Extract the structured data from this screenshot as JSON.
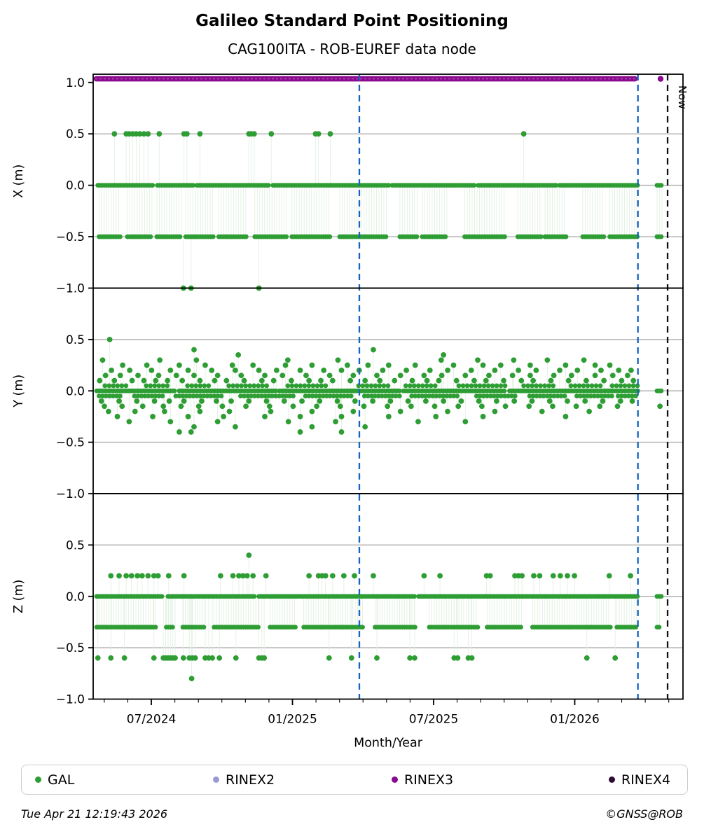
{
  "title": "Galileo Standard Point Positioning",
  "subtitle": "CAG100ITA - ROB-EUREF data node",
  "footer": {
    "timestamp": "Tue Apr 21 12:19:43 2026",
    "credit": "©GNSS@ROB"
  },
  "chart_data": {
    "type": "scatter",
    "title": "Galileo Standard Point Positioning",
    "subtitle": "CAG100ITA - ROB-EUREF data node",
    "xlabel": "Month/Year",
    "grid": "horizontal-only",
    "legend_position": "bottom-box",
    "colors": {
      "gal": "#2e9e34",
      "stem": "#e2f0e2",
      "rinex2": "#9a99d5",
      "rinex3": "#8a0a8f",
      "rinex4": "#2f0c33",
      "epoch_line": "#1565c0",
      "now_line": "#111111",
      "grid_line": "#b0b0b0",
      "spine": "#000000"
    },
    "x_axis": {
      "major_ticks": [
        {
          "f": 0.0986,
          "label": "07/2024"
        },
        {
          "f": 0.3379,
          "label": "01/2025"
        },
        {
          "f": 0.5772,
          "label": "07/2025"
        },
        {
          "f": 0.8165,
          "label": "01/2026"
        }
      ],
      "minor_ticks_f": [
        0.0188,
        0.0587,
        0.1385,
        0.1784,
        0.2182,
        0.2581,
        0.298,
        0.3778,
        0.4177,
        0.4575,
        0.4974,
        0.5373,
        0.617,
        0.6569,
        0.6968,
        0.7366,
        0.7765,
        0.8562,
        0.8961,
        0.936,
        0.9759
      ]
    },
    "now": {
      "f": 0.9739,
      "label": "Now"
    },
    "epoch_lines_f": [
      0.4513,
      0.9236
    ],
    "panels": [
      {
        "name": "X",
        "ylabel": "X (m)",
        "ylim": [
          -1.0,
          1.08
        ],
        "yticks": [
          {
            "v": 1.0,
            "label": "1.0"
          },
          {
            "v": 0.5,
            "label": "0.5"
          },
          {
            "v": 0.0,
            "label": "0.0"
          },
          {
            "v": -0.5,
            "label": "−0.5"
          },
          {
            "v": -1.0,
            "label": "−1.0"
          }
        ],
        "gridlines": [
          0.5,
          0.0,
          -0.5
        ],
        "rinex3_band": {
          "y": 1.035,
          "f0": 0.0,
          "f1": 0.9236,
          "extra_dot_f": 0.962
        },
        "dense_rows": [
          {
            "y": 0.0,
            "step": 3,
            "segments": [
              [
                0.008,
                0.103
              ],
              [
                0.109,
                0.17
              ],
              [
                0.176,
                0.3
              ],
              [
                0.305,
                0.502
              ],
              [
                0.507,
                0.648
              ],
              [
                0.653,
                0.786
              ],
              [
                0.791,
                0.9236
              ],
              [
                0.956,
                0.9665
              ]
            ]
          },
          {
            "y": -0.5,
            "step": 3,
            "stem_to": 0.0,
            "segments": [
              [
                0.01,
                0.046
              ],
              [
                0.058,
                0.1
              ],
              [
                0.108,
                0.15
              ],
              [
                0.157,
                0.206
              ],
              [
                0.213,
                0.262
              ],
              [
                0.274,
                0.33
              ],
              [
                0.337,
                0.402
              ],
              [
                0.418,
                0.498
              ],
              [
                0.52,
                0.552
              ],
              [
                0.558,
                0.6
              ],
              [
                0.63,
                0.7
              ],
              [
                0.72,
                0.76
              ],
              [
                0.766,
                0.802
              ],
              [
                0.83,
                0.866
              ],
              [
                0.876,
                0.9236
              ],
              [
                0.956,
                0.9665
              ]
            ]
          }
        ],
        "sparse_points": [
          {
            "y": 0.5,
            "stem_to": 0.0,
            "f": [
              0.036,
              0.056,
              0.061,
              0.067,
              0.073,
              0.079,
              0.086,
              0.093,
              0.112,
              0.154,
              0.159,
              0.181,
              0.264,
              0.268,
              0.273,
              0.302,
              0.377,
              0.382,
              0.402,
              0.73
            ]
          },
          {
            "y": -1.0,
            "stem_to": -0.5,
            "f": [
              0.153,
              0.166,
              0.281
            ]
          }
        ]
      },
      {
        "name": "Y",
        "ylabel": "Y (m)",
        "ylim": [
          -1.0,
          1.0
        ],
        "yticks": [
          {
            "v": 0.5,
            "label": "0.5"
          },
          {
            "v": 0.0,
            "label": "0.0"
          },
          {
            "v": -0.5,
            "label": "−0.5"
          },
          {
            "v": -1.0,
            "label": "−1.0"
          }
        ],
        "gridlines": [
          0.5,
          0.0,
          -0.5
        ],
        "dense_rows": [
          {
            "y": 0.0,
            "step": 3,
            "segments": [
              [
                0.006,
                0.14
              ],
              [
                0.146,
                0.31
              ],
              [
                0.316,
                0.52
              ],
              [
                0.526,
                0.7
              ],
              [
                0.706,
                0.9236
              ],
              [
                0.956,
                0.9665
              ]
            ]
          },
          {
            "y": -0.05,
            "step": 5,
            "segments": [
              [
                0.01,
                0.05
              ],
              [
                0.07,
                0.12
              ],
              [
                0.14,
                0.22
              ],
              [
                0.25,
                0.34
              ],
              [
                0.36,
                0.44
              ],
              [
                0.46,
                0.52
              ],
              [
                0.54,
                0.62
              ],
              [
                0.65,
                0.72
              ],
              [
                0.74,
                0.8
              ],
              [
                0.82,
                0.88
              ],
              [
                0.89,
                0.9236
              ]
            ]
          },
          {
            "y": 0.05,
            "step": 6,
            "segments": [
              [
                0.02,
                0.06
              ],
              [
                0.09,
                0.13
              ],
              [
                0.16,
                0.2
              ],
              [
                0.23,
                0.3
              ],
              [
                0.33,
                0.4
              ],
              [
                0.45,
                0.5
              ],
              [
                0.53,
                0.58
              ],
              [
                0.62,
                0.7
              ],
              [
                0.73,
                0.78
              ],
              [
                0.81,
                0.86
              ],
              [
                0.88,
                0.9236
              ]
            ]
          }
        ],
        "sparse_points": [
          {
            "y": 0.5,
            "stem_to": 0.0,
            "f": [
              0.028
            ]
          },
          {
            "y": 0.4,
            "stem_to": 0.0,
            "f": [
              0.171,
              0.475
            ]
          },
          {
            "y": 0.35,
            "stem_to": 0.0,
            "f": [
              0.246,
              0.594
            ]
          },
          {
            "y": 0.3,
            "stem_to": 0.0,
            "f": [
              0.016,
              0.113,
              0.175,
              0.33,
              0.415,
              0.59,
              0.652,
              0.713,
              0.77,
              0.832
            ]
          },
          {
            "y": 0.25,
            "stem_to": 0.0,
            "f": [
              0.05,
              0.091,
              0.146,
              0.19,
              0.236,
              0.271,
              0.326,
              0.371,
              0.431,
              0.466,
              0.501,
              0.546,
              0.611,
              0.661,
              0.691,
              0.741,
              0.801,
              0.851,
              0.876
            ]
          },
          {
            "y": 0.2,
            "stem_to": 0.0,
            "f": [
              0.031,
              0.062,
              0.099,
              0.131,
              0.161,
              0.201,
              0.241,
              0.281,
              0.311,
              0.351,
              0.391,
              0.421,
              0.451,
              0.491,
              0.531,
              0.571,
              0.601,
              0.641,
              0.681,
              0.721,
              0.751,
              0.791,
              0.821,
              0.861,
              0.891,
              0.912
            ]
          },
          {
            "y": 0.15,
            "stem_to": 0.0,
            "f": [
              0.021,
              0.046,
              0.076,
              0.111,
              0.141,
              0.171,
              0.211,
              0.251,
              0.291,
              0.321,
              0.361,
              0.401,
              0.441,
              0.481,
              0.521,
              0.561,
              0.591,
              0.631,
              0.671,
              0.711,
              0.741,
              0.781,
              0.811,
              0.851,
              0.881,
              0.906
            ]
          },
          {
            "y": 0.1,
            "stem_to": 0.0,
            "f": [
              0.011,
              0.036,
              0.066,
              0.086,
              0.106,
              0.126,
              0.151,
              0.181,
              0.206,
              0.226,
              0.256,
              0.286,
              0.306,
              0.336,
              0.366,
              0.386,
              0.406,
              0.436,
              0.461,
              0.486,
              0.511,
              0.541,
              0.566,
              0.586,
              0.616,
              0.646,
              0.666,
              0.696,
              0.726,
              0.746,
              0.776,
              0.806,
              0.836,
              0.866,
              0.896,
              0.916
            ]
          },
          {
            "y": -0.1,
            "stem_to": 0.0,
            "f": [
              0.014,
              0.044,
              0.074,
              0.104,
              0.129,
              0.154,
              0.184,
              0.209,
              0.234,
              0.264,
              0.294,
              0.324,
              0.354,
              0.384,
              0.414,
              0.444,
              0.474,
              0.504,
              0.534,
              0.564,
              0.594,
              0.624,
              0.654,
              0.684,
              0.714,
              0.744,
              0.774,
              0.804,
              0.834,
              0.864,
              0.894,
              0.914
            ]
          },
          {
            "y": -0.15,
            "stem_to": 0.0,
            "f": [
              0.019,
              0.049,
              0.084,
              0.119,
              0.149,
              0.179,
              0.219,
              0.259,
              0.299,
              0.339,
              0.379,
              0.419,
              0.459,
              0.499,
              0.539,
              0.579,
              0.619,
              0.659,
              0.699,
              0.739,
              0.779,
              0.819,
              0.859,
              0.889,
              0.961
            ]
          },
          {
            "y": -0.2,
            "stem_to": 0.0,
            "f": [
              0.026,
              0.071,
              0.121,
              0.181,
              0.231,
              0.301,
              0.371,
              0.441,
              0.521,
              0.601,
              0.681,
              0.761,
              0.841
            ]
          },
          {
            "y": -0.25,
            "stem_to": 0.0,
            "f": [
              0.041,
              0.101,
              0.161,
              0.221,
              0.291,
              0.351,
              0.421,
              0.501,
              0.581,
              0.661,
              0.801
            ]
          },
          {
            "y": -0.3,
            "stem_to": 0.0,
            "f": [
              0.061,
              0.131,
              0.211,
              0.331,
              0.411,
              0.551,
              0.631
            ]
          },
          {
            "y": -0.35,
            "stem_to": 0.0,
            "f": [
              0.171,
              0.241,
              0.371,
              0.461
            ]
          },
          {
            "y": -0.4,
            "stem_to": 0.0,
            "f": [
              0.146,
              0.166,
              0.351,
              0.421
            ]
          }
        ]
      },
      {
        "name": "Z",
        "ylabel": "Z (m)",
        "ylim": [
          -1.0,
          1.0
        ],
        "yticks": [
          {
            "v": 0.5,
            "label": "0.5"
          },
          {
            "v": 0.0,
            "label": "0.0"
          },
          {
            "v": -0.5,
            "label": "−0.5"
          },
          {
            "v": -1.0,
            "label": "−1.0"
          }
        ],
        "gridlines": [
          0.5,
          0.0,
          -0.5
        ],
        "dense_rows": [
          {
            "y": 0.0,
            "step": 3,
            "segments": [
              [
                0.006,
                0.118
              ],
              [
                0.127,
                0.274
              ],
              [
                0.281,
                0.546
              ],
              [
                0.552,
                0.9236
              ],
              [
                0.956,
                0.9665
              ]
            ]
          },
          {
            "y": -0.3,
            "step": 3,
            "stem_to": 0.0,
            "segments": [
              [
                0.006,
                0.108
              ],
              [
                0.124,
                0.135
              ],
              [
                0.152,
                0.19
              ],
              [
                0.205,
                0.283
              ],
              [
                0.3,
                0.345
              ],
              [
                0.357,
                0.458
              ],
              [
                0.478,
                0.548
              ],
              [
                0.57,
                0.652
              ],
              [
                0.668,
                0.728
              ],
              [
                0.745,
                0.878
              ],
              [
                0.888,
                0.9236
              ],
              [
                0.956,
                0.9625
              ]
            ]
          }
        ],
        "sparse_points": [
          {
            "y": 0.4,
            "stem_to": 0.0,
            "f": [
              0.264
            ]
          },
          {
            "y": 0.2,
            "stem_to": 0.0,
            "f": [
              0.03,
              0.044,
              0.056,
              0.065,
              0.075,
              0.083,
              0.093,
              0.103,
              0.11,
              0.128,
              0.154,
              0.216,
              0.237,
              0.247,
              0.254,
              0.261,
              0.271,
              0.293,
              0.366,
              0.382,
              0.388,
              0.394,
              0.406,
              0.425,
              0.443,
              0.475,
              0.561,
              0.588,
              0.667,
              0.673,
              0.715,
              0.721,
              0.727,
              0.747,
              0.757,
              0.78,
              0.792,
              0.804,
              0.816,
              0.875,
              0.911
            ]
          },
          {
            "y": -0.6,
            "stem_to": 0.0,
            "f": [
              0.008,
              0.03,
              0.053,
              0.103,
              0.119,
              0.123,
              0.127,
              0.131,
              0.135,
              0.139,
              0.153,
              0.163,
              0.168,
              0.173,
              0.19,
              0.196,
              0.202,
              0.214,
              0.242,
              0.281,
              0.286,
              0.29,
              0.4,
              0.438,
              0.481,
              0.537,
              0.545,
              0.612,
              0.618,
              0.636,
              0.642,
              0.837,
              0.885
            ]
          },
          {
            "y": -0.8,
            "stem_to": 0.0,
            "f": [
              0.167
            ]
          }
        ]
      }
    ],
    "legend": [
      {
        "label": "GAL",
        "color_key": "gal"
      },
      {
        "label": "RINEX2",
        "color_key": "rinex2"
      },
      {
        "label": "RINEX3",
        "color_key": "rinex3"
      },
      {
        "label": "RINEX4",
        "color_key": "rinex4"
      }
    ]
  }
}
